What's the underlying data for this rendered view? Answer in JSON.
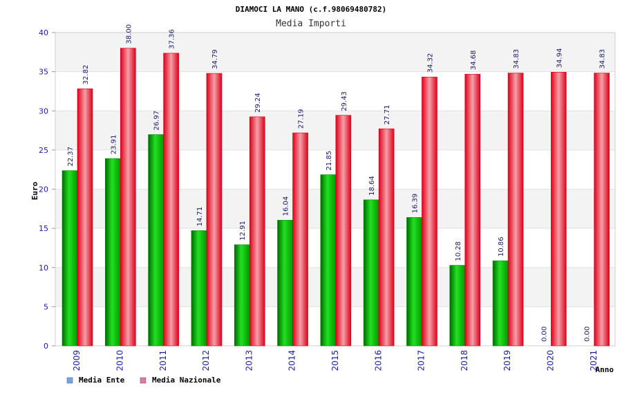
{
  "chart_data": {
    "type": "bar",
    "title": "DIAMOCI LA MANO (c.f.98069480782)",
    "subtitle": "Media Importi",
    "xlabel": "Anno",
    "ylabel": "Euro",
    "ylim": [
      0,
      40
    ],
    "yticks": [
      0,
      5,
      10,
      15,
      20,
      25,
      30,
      35,
      40
    ],
    "grid": true,
    "legend_position": "bottom-left",
    "categories": [
      "2009",
      "2010",
      "2011",
      "2012",
      "2013",
      "2014",
      "2015",
      "2016",
      "2017",
      "2018",
      "2019",
      "2020",
      "2021"
    ],
    "series": [
      {
        "name": "Media Ente",
        "color": "#00c000",
        "values": [
          22.37,
          23.91,
          26.97,
          14.71,
          12.91,
          16.04,
          21.85,
          18.64,
          16.39,
          10.28,
          10.86,
          0,
          0
        ],
        "labels": [
          "22.37",
          "23.91",
          "26.97",
          "14.71",
          "12.91",
          "16.04",
          "21.85",
          "18.64",
          "16.39",
          "10.28",
          "10.86",
          "0.00",
          "0.00"
        ]
      },
      {
        "name": "Media Nazionale",
        "color": "#f01020",
        "values": [
          32.82,
          38.0,
          37.36,
          34.79,
          29.24,
          27.19,
          29.43,
          27.71,
          34.32,
          34.68,
          34.83,
          34.94,
          34.83
        ],
        "labels": [
          "32.82",
          "38.00",
          "37.36",
          "34.79",
          "29.24",
          "27.19",
          "29.43",
          "27.71",
          "34.32",
          "34.68",
          "34.83",
          "34.94",
          "34.83"
        ]
      }
    ],
    "legend_colors": [
      "#6fa8e8",
      "#e07aa8"
    ]
  }
}
